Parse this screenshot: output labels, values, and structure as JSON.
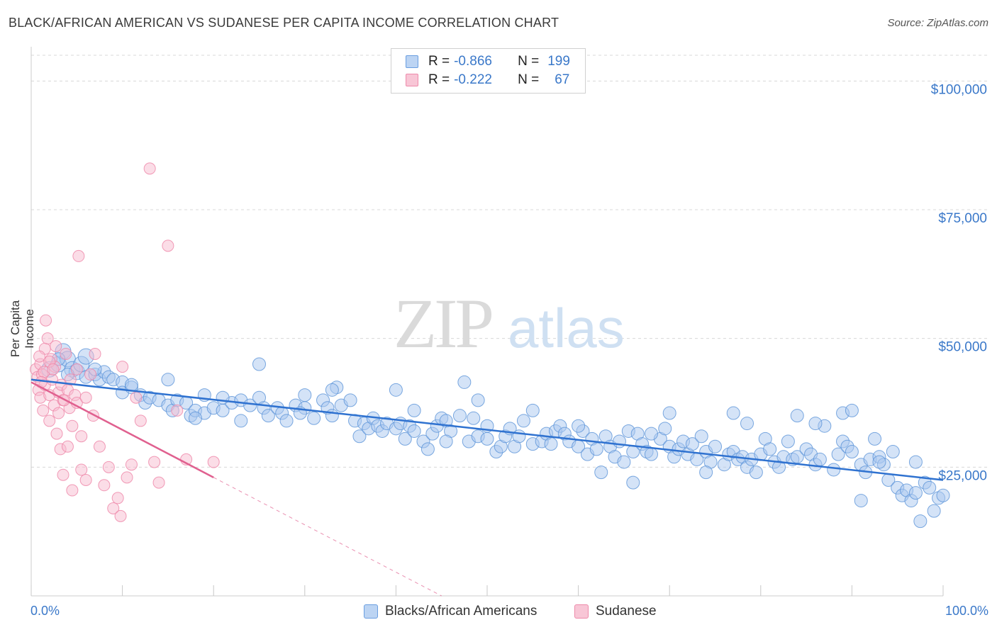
{
  "title": "BLACK/AFRICAN AMERICAN VS SUDANESE PER CAPITA INCOME CORRELATION CHART",
  "source": "Source: ZipAtlas.com",
  "watermark": {
    "zip": "ZIP",
    "atlas": "atlas"
  },
  "legend": {
    "series1": {
      "r_label": "R =",
      "r_value": "-0.866",
      "n_label": "N =",
      "n_value": "199"
    },
    "series2": {
      "r_label": "R =",
      "r_value": "-0.222",
      "n_label": "N =",
      "n_value": "67"
    }
  },
  "colors": {
    "blue_fill": "#a9c8f0",
    "blue_stroke": "#5b93d8",
    "blue_line": "#2f72d0",
    "pink_fill": "#f7bcd0",
    "pink_stroke": "#ee8aaa",
    "pink_line": "#e0608f",
    "grid": "#d8d8d8",
    "tick_text": "#3a78c9"
  },
  "chart_data": {
    "type": "scatter",
    "title": "BLACK/AFRICAN AMERICAN VS SUDANESE PER CAPITA INCOME CORRELATION CHART",
    "xlabel": "",
    "ylabel": "Per Capita Income",
    "xlim": [
      0,
      100
    ],
    "ylim": [
      0,
      105000
    ],
    "x_tick_labels": [
      "0.0%",
      "100.0%"
    ],
    "y_ticks": [
      25000,
      50000,
      75000,
      100000
    ],
    "y_tick_labels": [
      "$25,000",
      "$50,000",
      "$75,000",
      "$100,000"
    ],
    "grid": true,
    "series": [
      {
        "name": "Blacks/African Americans",
        "trend": {
          "x": [
            0,
            100
          ],
          "y": [
            42000,
            22500
          ]
        },
        "points": [
          [
            2,
            44000
          ],
          [
            3,
            45000
          ],
          [
            3.5,
            47500
          ],
          [
            4,
            46000
          ],
          [
            4.5,
            44000
          ],
          [
            5,
            43500
          ],
          [
            5.5,
            45000
          ],
          [
            6,
            46500
          ],
          [
            6,
            42500
          ],
          [
            7,
            43000
          ],
          [
            7.5,
            42000
          ],
          [
            8,
            43500
          ],
          [
            8.5,
            42500
          ],
          [
            9,
            42000
          ],
          [
            10,
            41500
          ],
          [
            10,
            39500
          ],
          [
            11,
            40500
          ],
          [
            12,
            39000
          ],
          [
            12.5,
            37500
          ],
          [
            13,
            38500
          ],
          [
            14,
            38000
          ],
          [
            15,
            37000
          ],
          [
            15.5,
            36000
          ],
          [
            16,
            38000
          ],
          [
            17,
            37500
          ],
          [
            17.5,
            35000
          ],
          [
            18,
            36000
          ],
          [
            19,
            35500
          ],
          [
            19,
            39000
          ],
          [
            20,
            36500
          ],
          [
            21,
            36000
          ],
          [
            22,
            37500
          ],
          [
            23,
            38000
          ],
          [
            23,
            34000
          ],
          [
            24,
            37000
          ],
          [
            25,
            38500
          ],
          [
            25.5,
            36500
          ],
          [
            26,
            35000
          ],
          [
            27,
            36500
          ],
          [
            27.5,
            35500
          ],
          [
            28,
            34000
          ],
          [
            29,
            37000
          ],
          [
            30,
            36500
          ],
          [
            30,
            39000
          ],
          [
            31,
            34500
          ],
          [
            32,
            38000
          ],
          [
            32.5,
            36500
          ],
          [
            33,
            35000
          ],
          [
            33.5,
            40500
          ],
          [
            34,
            37000
          ],
          [
            35,
            38000
          ],
          [
            35.5,
            34000
          ],
          [
            36,
            31000
          ],
          [
            36.5,
            33500
          ],
          [
            37,
            32500
          ],
          [
            37.5,
            34500
          ],
          [
            38,
            33000
          ],
          [
            38.5,
            32000
          ],
          [
            39,
            33500
          ],
          [
            40,
            32500
          ],
          [
            40.5,
            33500
          ],
          [
            41,
            30500
          ],
          [
            41.5,
            33000
          ],
          [
            42,
            32000
          ],
          [
            43,
            30000
          ],
          [
            43.5,
            28500
          ],
          [
            44,
            31500
          ],
          [
            44.5,
            33000
          ],
          [
            45,
            34500
          ],
          [
            45.5,
            34000
          ],
          [
            46,
            32000
          ],
          [
            47,
            35000
          ],
          [
            48,
            30000
          ],
          [
            48.5,
            34500
          ],
          [
            49,
            31000
          ],
          [
            50,
            30500
          ],
          [
            50,
            33000
          ],
          [
            51,
            28000
          ],
          [
            51.5,
            29000
          ],
          [
            52,
            31000
          ],
          [
            52.5,
            32500
          ],
          [
            53,
            29000
          ],
          [
            53.5,
            31000
          ],
          [
            54,
            34000
          ],
          [
            55,
            29500
          ],
          [
            56,
            30000
          ],
          [
            56.5,
            31500
          ],
          [
            57,
            29500
          ],
          [
            57.5,
            32000
          ],
          [
            58,
            33000
          ],
          [
            58.5,
            31500
          ],
          [
            59,
            30000
          ],
          [
            60,
            29000
          ],
          [
            60.5,
            32000
          ],
          [
            61,
            27500
          ],
          [
            61.5,
            30500
          ],
          [
            62,
            28500
          ],
          [
            63,
            31000
          ],
          [
            63.5,
            29000
          ],
          [
            64,
            27000
          ],
          [
            64.5,
            30000
          ],
          [
            65,
            26000
          ],
          [
            65.5,
            32000
          ],
          [
            66,
            28000
          ],
          [
            66.5,
            31500
          ],
          [
            67,
            29500
          ],
          [
            67.5,
            28000
          ],
          [
            68,
            27500
          ],
          [
            69,
            30500
          ],
          [
            69.5,
            32500
          ],
          [
            70,
            29000
          ],
          [
            70.5,
            27000
          ],
          [
            71,
            28500
          ],
          [
            71.5,
            30000
          ],
          [
            72,
            27500
          ],
          [
            72.5,
            29500
          ],
          [
            73,
            26500
          ],
          [
            73.5,
            31000
          ],
          [
            74,
            28000
          ],
          [
            74.5,
            26000
          ],
          [
            75,
            29000
          ],
          [
            76,
            25500
          ],
          [
            76.5,
            27500
          ],
          [
            77,
            28000
          ],
          [
            77.5,
            26500
          ],
          [
            78,
            27000
          ],
          [
            78.5,
            25000
          ],
          [
            79,
            26500
          ],
          [
            79.5,
            24000
          ],
          [
            80,
            27500
          ],
          [
            80.5,
            30500
          ],
          [
            81,
            28500
          ],
          [
            81.5,
            26000
          ],
          [
            82,
            25000
          ],
          [
            82.5,
            27000
          ],
          [
            83,
            30000
          ],
          [
            83.5,
            26500
          ],
          [
            84,
            27000
          ],
          [
            85,
            28500
          ],
          [
            85.5,
            27500
          ],
          [
            86,
            25500
          ],
          [
            86.5,
            26500
          ],
          [
            87,
            33000
          ],
          [
            88,
            24500
          ],
          [
            88.5,
            27500
          ],
          [
            89,
            30000
          ],
          [
            89.5,
            29000
          ],
          [
            90,
            28000
          ],
          [
            91,
            25500
          ],
          [
            91.5,
            24000
          ],
          [
            92,
            26500
          ],
          [
            93,
            27000
          ],
          [
            93.5,
            25500
          ],
          [
            94,
            22500
          ],
          [
            94.5,
            28000
          ],
          [
            95,
            21000
          ],
          [
            95.5,
            19500
          ],
          [
            96,
            20500
          ],
          [
            96.5,
            18500
          ],
          [
            97,
            20000
          ],
          [
            97.5,
            14500
          ],
          [
            98,
            22000
          ],
          [
            98.5,
            21000
          ],
          [
            99,
            16500
          ],
          [
            99.5,
            19000
          ],
          [
            100,
            19500
          ],
          [
            15,
            42000
          ],
          [
            18,
            34500
          ],
          [
            25,
            45000
          ],
          [
            47.5,
            41500
          ],
          [
            49,
            38000
          ],
          [
            29.5,
            35500
          ],
          [
            42,
            36000
          ],
          [
            45.5,
            30000
          ],
          [
            62.5,
            24000
          ],
          [
            70,
            35500
          ],
          [
            77,
            35500
          ],
          [
            89,
            35500
          ],
          [
            55,
            36000
          ],
          [
            60,
            33000
          ],
          [
            68,
            31500
          ],
          [
            78.5,
            33500
          ],
          [
            84,
            35000
          ],
          [
            90,
            36000
          ],
          [
            92.5,
            30500
          ],
          [
            74,
            24000
          ],
          [
            66,
            22000
          ],
          [
            97,
            26000
          ],
          [
            91,
            18500
          ],
          [
            93,
            26000
          ],
          [
            86,
            33500
          ],
          [
            40,
            40000
          ],
          [
            33,
            40000
          ],
          [
            21,
            38500
          ],
          [
            11,
            41000
          ],
          [
            7,
            44000
          ],
          [
            4,
            43000
          ],
          [
            3,
            46000
          ]
        ],
        "sizes": {
          "default": 1,
          "large_first": 2
        }
      },
      {
        "name": "Sudanese",
        "trend": {
          "x": [
            0,
            20
          ],
          "y": [
            41500,
            23000
          ]
        },
        "trend_dashed": {
          "x": [
            20,
            45
          ],
          "y": [
            23000,
            0
          ]
        },
        "points": [
          [
            0.5,
            44000
          ],
          [
            0.7,
            42500
          ],
          [
            0.8,
            40000
          ],
          [
            1,
            45000
          ],
          [
            1,
            38500
          ],
          [
            1.2,
            43000
          ],
          [
            1.3,
            36000
          ],
          [
            1.5,
            41000
          ],
          [
            1.5,
            48000
          ],
          [
            1.6,
            53500
          ],
          [
            1.8,
            50000
          ],
          [
            2,
            39000
          ],
          [
            2,
            34000
          ],
          [
            2.2,
            46000
          ],
          [
            2.3,
            42000
          ],
          [
            2.5,
            37000
          ],
          [
            2.6,
            44500
          ],
          [
            2.8,
            31500
          ],
          [
            3,
            39500
          ],
          [
            3,
            35500
          ],
          [
            3.2,
            28500
          ],
          [
            3.3,
            41000
          ],
          [
            3.5,
            23500
          ],
          [
            3.5,
            38000
          ],
          [
            3.8,
            47000
          ],
          [
            4,
            29000
          ],
          [
            4,
            40000
          ],
          [
            4.2,
            36500
          ],
          [
            4.5,
            33000
          ],
          [
            4.5,
            20500
          ],
          [
            4.8,
            39000
          ],
          [
            5,
            44000
          ],
          [
            5,
            37500
          ],
          [
            5.2,
            66000
          ],
          [
            5.5,
            31000
          ],
          [
            5.5,
            24500
          ],
          [
            6,
            22500
          ],
          [
            6,
            38500
          ],
          [
            6.5,
            43000
          ],
          [
            6.8,
            35000
          ],
          [
            7,
            47000
          ],
          [
            7.5,
            29000
          ],
          [
            8,
            21500
          ],
          [
            8.5,
            25000
          ],
          [
            9,
            17000
          ],
          [
            9.5,
            19000
          ],
          [
            9.8,
            15500
          ],
          [
            10,
            44500
          ],
          [
            10.5,
            23000
          ],
          [
            11,
            25500
          ],
          [
            11.5,
            38500
          ],
          [
            12,
            34000
          ],
          [
            13,
            83000
          ],
          [
            13.5,
            26000
          ],
          [
            14,
            22000
          ],
          [
            15,
            68000
          ],
          [
            16,
            36000
          ],
          [
            17,
            26500
          ],
          [
            2,
            45500
          ],
          [
            1.4,
            43500
          ],
          [
            0.9,
            46500
          ],
          [
            2.7,
            48500
          ],
          [
            3.6,
            38000
          ],
          [
            1.1,
            41500
          ],
          [
            2.4,
            44000
          ],
          [
            20,
            26000
          ],
          [
            4.3,
            42000
          ]
        ]
      }
    ],
    "series_names": [
      "Blacks/African Americans",
      "Sudanese"
    ]
  },
  "bottom_legend": {
    "item1": "Blacks/African Americans",
    "item2": "Sudanese"
  },
  "x_axis": {
    "min_label": "0.0%",
    "max_label": "100.0%"
  }
}
